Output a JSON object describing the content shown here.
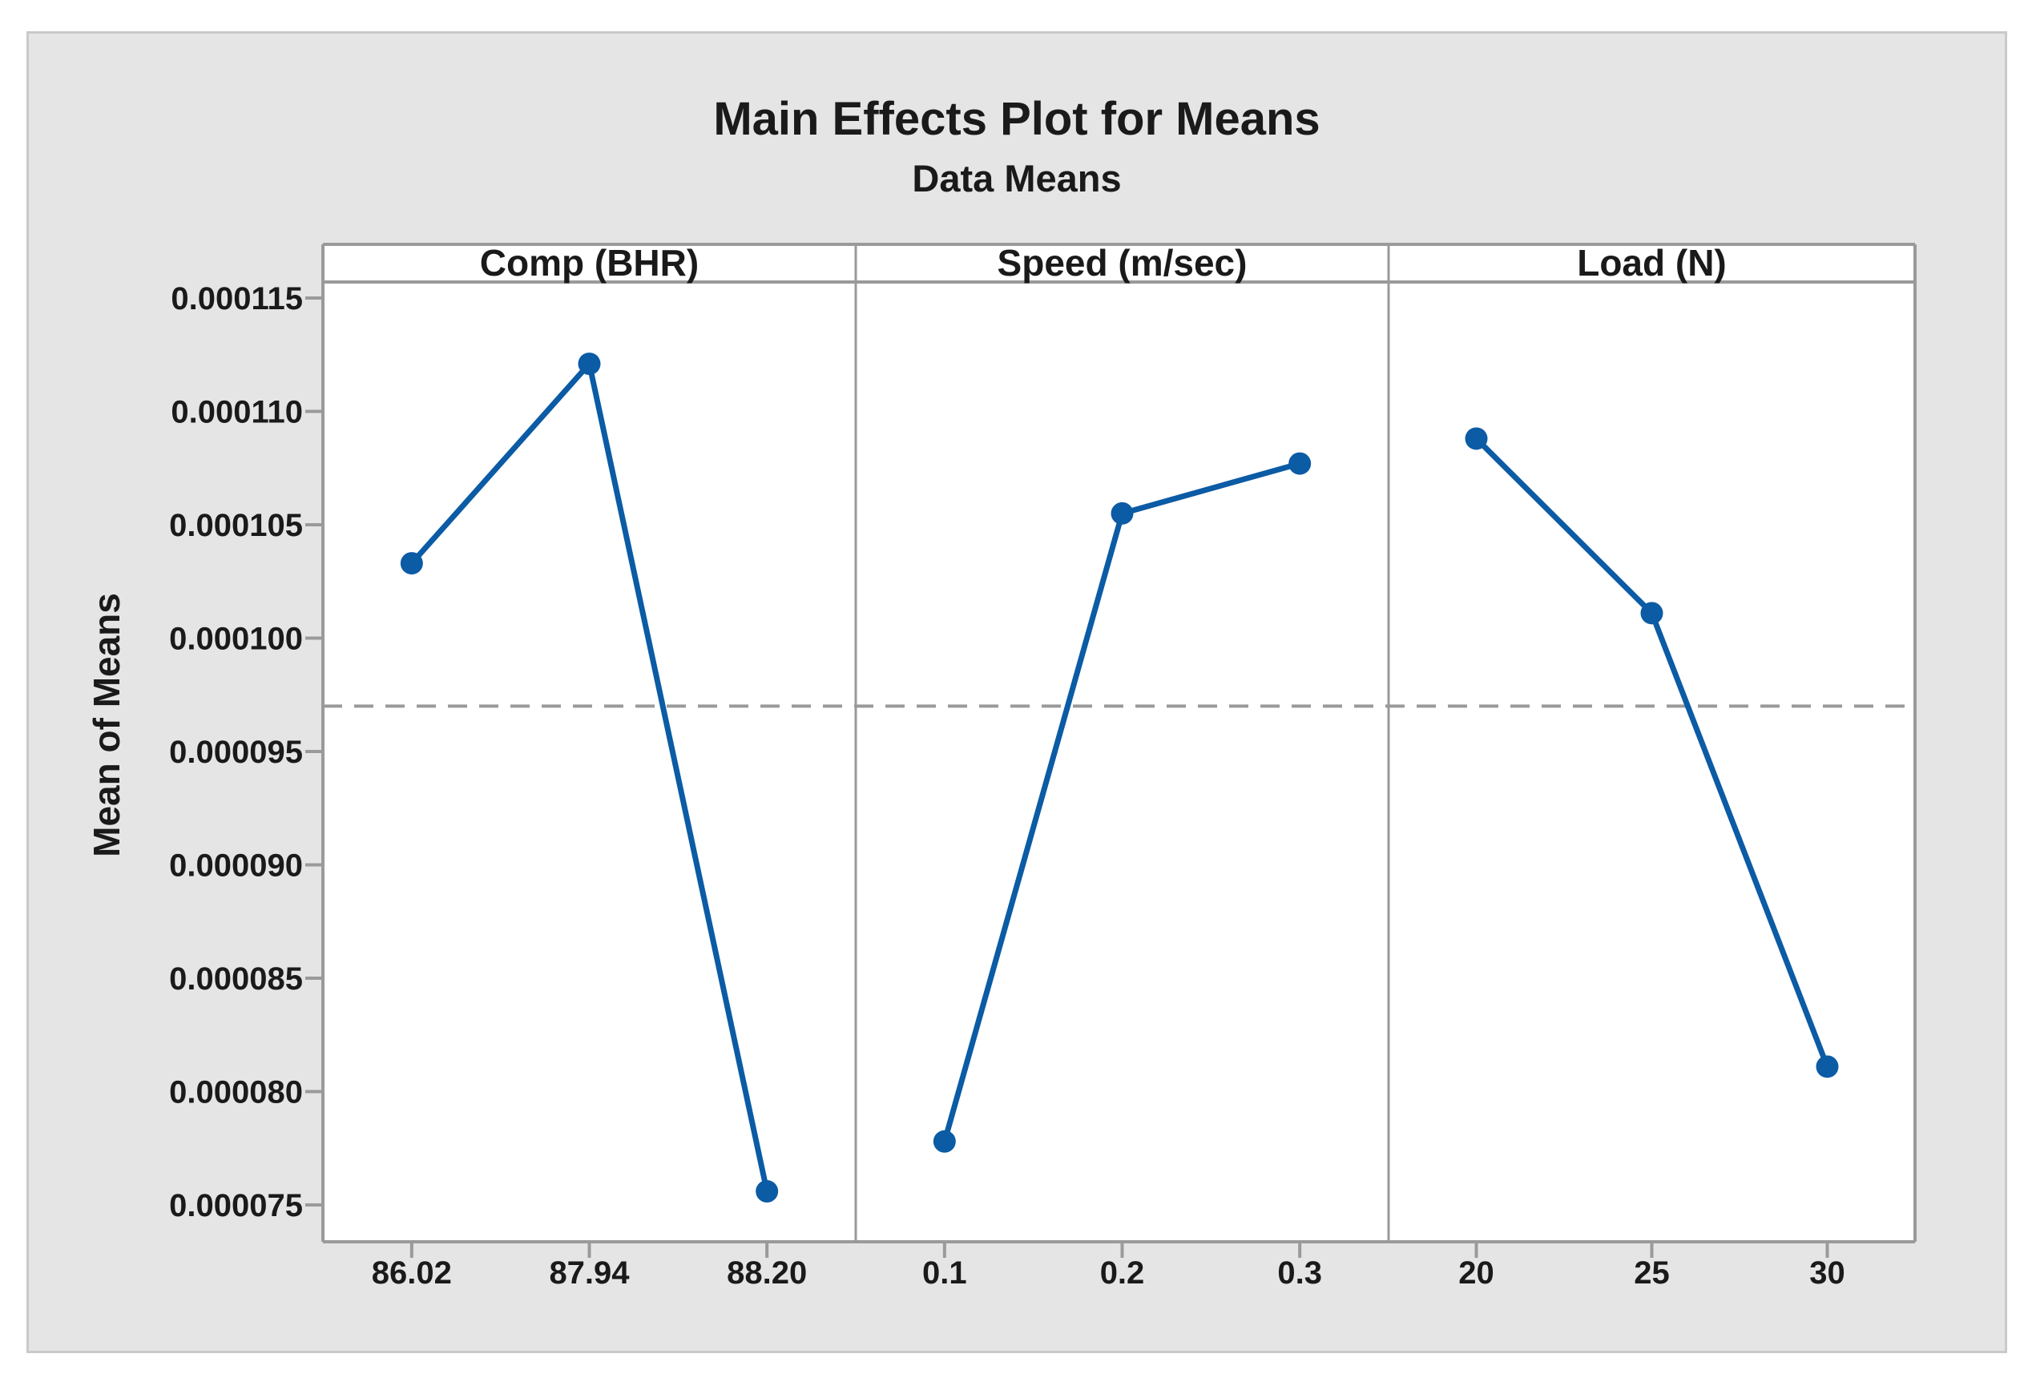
{
  "chart_data": {
    "type": "line",
    "title": "Main Effects Plot for Means",
    "subtitle": "Data Means",
    "ylabel": "Mean of Means",
    "ylim": [
      7.34e-05,
      0.0001157
    ],
    "yticks": [
      0.000115,
      0.00011,
      0.000105,
      0.0001,
      9.5e-05,
      9e-05,
      8.5e-05,
      8e-05,
      7.5e-05
    ],
    "ytick_labels": [
      "0.000115",
      "0.000110",
      "0.000105",
      "0.000100",
      "0.000095",
      "0.000090",
      "0.000085",
      "0.000080",
      "0.000075"
    ],
    "grand_mean": 9.7e-05,
    "grand_mean_style": "dashed",
    "grid": false,
    "legend": "none",
    "panels": [
      {
        "label": "Comp (BHR)",
        "categories": [
          "86.02",
          "87.94",
          "88.20"
        ],
        "values": [
          0.0001033,
          0.0001121,
          7.56e-05
        ]
      },
      {
        "label": "Speed (m/sec)",
        "categories": [
          "0.1",
          "0.2",
          "0.3"
        ],
        "values": [
          7.78e-05,
          0.0001055,
          0.0001077
        ]
      },
      {
        "label": "Load (N)",
        "categories": [
          "20",
          "25",
          "30"
        ],
        "values": [
          0.0001088,
          0.0001011,
          8.11e-05
        ]
      }
    ],
    "colors": {
      "series": "#0B5BA5",
      "axis": "#9A9A9A",
      "dashed_line": "#9A9A9A",
      "chart_background": "#E5E5E5",
      "panel_background": "#FFFFFF",
      "frame_border": "#C9C9C9",
      "text": "#1A1A1A"
    }
  }
}
